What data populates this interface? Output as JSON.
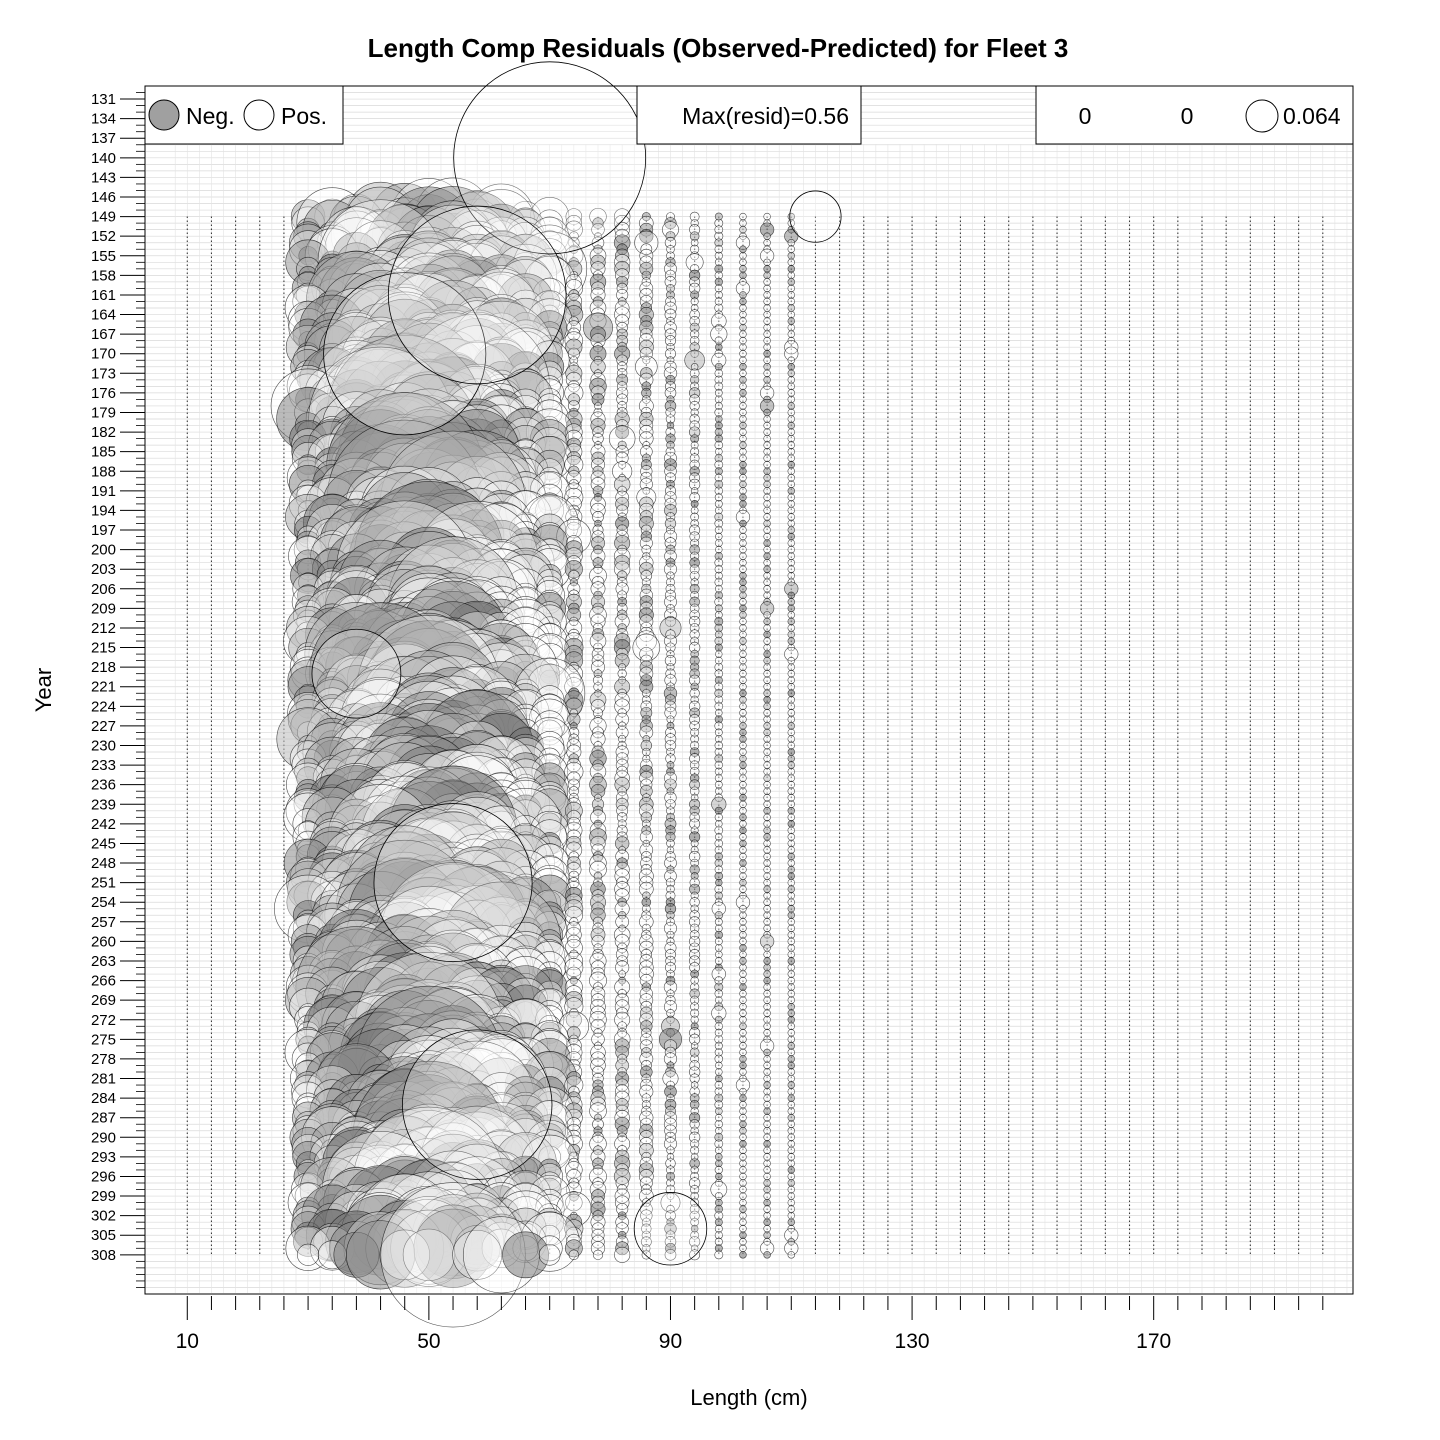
{
  "chart_data": {
    "type": "bubble",
    "title": "Length Comp Residuals (Observed-Predicted) for Fleet 3",
    "xlabel": "Length (cm)",
    "ylabel": "Year",
    "xlim": [
      3,
      203
    ],
    "ylim": [
      129,
      314
    ],
    "x_ticks": [
      10,
      50,
      90,
      130,
      170
    ],
    "y_ticks": [
      131,
      134,
      137,
      140,
      143,
      146,
      149,
      152,
      155,
      158,
      161,
      164,
      167,
      170,
      173,
      176,
      179,
      182,
      185,
      188,
      191,
      194,
      197,
      200,
      203,
      206,
      209,
      212,
      215,
      218,
      221,
      224,
      227,
      230,
      233,
      236,
      239,
      242,
      245,
      248,
      251,
      254,
      257,
      260,
      263,
      266,
      269,
      272,
      275,
      278,
      281,
      284,
      287,
      290,
      293,
      296,
      299,
      302,
      305,
      308
    ],
    "length_bins": [
      10,
      14,
      18,
      22,
      26,
      30,
      34,
      38,
      42,
      46,
      50,
      54,
      58,
      62,
      66,
      70,
      74,
      78,
      82,
      86,
      90,
      94,
      98,
      102,
      106,
      110,
      114,
      118,
      122,
      126,
      130,
      134,
      138,
      142,
      146,
      150,
      154,
      158,
      162,
      166,
      170,
      174,
      178,
      182,
      186,
      190,
      194,
      198
    ],
    "max_resid": 0.56,
    "legend": {
      "neg_label": "Neg.",
      "pos_label": "Pos.",
      "max_label": "Max(resid)=0.56",
      "size_values": [
        "0",
        "0",
        "0.064"
      ]
    },
    "colors": {
      "negative": "#808080",
      "positive": "#ffffff",
      "outline": "#000000"
    },
    "notable_points": [
      {
        "year": 140,
        "length": 70,
        "resid": 0.56
      },
      {
        "year": 149,
        "length": 114,
        "resid": 0.04
      },
      {
        "year": 170,
        "length": 46,
        "resid": 0.4
      },
      {
        "year": 161,
        "length": 58,
        "resid": 0.48
      },
      {
        "year": 251,
        "length": 54,
        "resid": 0.38
      },
      {
        "year": 285,
        "length": 58,
        "resid": 0.34
      },
      {
        "year": 304,
        "length": 90,
        "resid": 0.08
      },
      {
        "year": 219,
        "length": 38,
        "resid": 0.12
      }
    ]
  }
}
